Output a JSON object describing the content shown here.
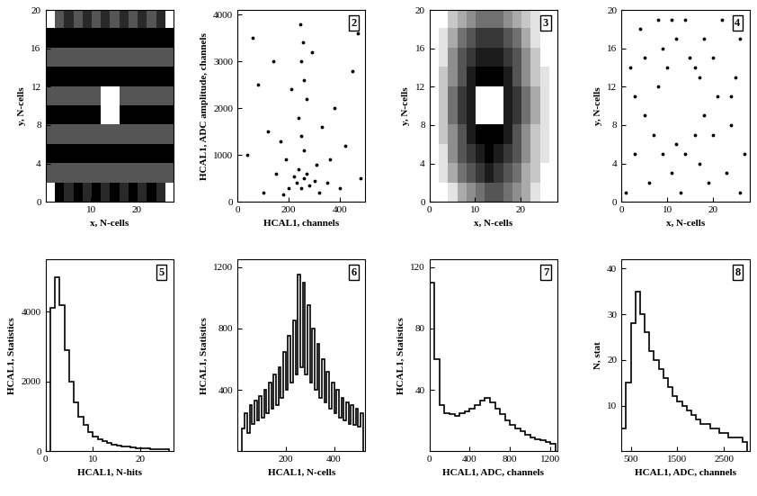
{
  "chart_data": [
    {
      "type": "heatmap",
      "xlabel": "x, N-cells",
      "ylabel": "y, N-cells",
      "xlim": [
        0,
        28
      ],
      "ylim": [
        0,
        20
      ],
      "xticks": [
        10,
        20
      ],
      "yticks": [
        0,
        4,
        8,
        12,
        16,
        20
      ],
      "cells": [
        [
          0,
          0.6,
          0.5,
          0.6,
          0.5,
          0.6,
          0.5,
          0.6,
          0.5,
          0.6,
          0.5,
          0.6,
          0.5,
          0
        ],
        [
          0.4,
          0.4,
          0.4,
          0.4,
          0.4,
          0.4,
          0.4,
          0.4,
          0.4,
          0.4,
          0.4,
          0.4,
          0.4,
          0.4
        ],
        [
          0.6,
          0.6,
          0.6,
          0.6,
          0.6,
          0.6,
          0.6,
          0.6,
          0.6,
          0.6,
          0.6,
          0.6,
          0.6,
          0.6
        ],
        [
          0.4,
          0.4,
          0.4,
          0.4,
          0.4,
          0.4,
          0.4,
          0.4,
          0.4,
          0.4,
          0.4,
          0.4,
          0.4,
          0.4
        ],
        [
          0.6,
          0.6,
          0.6,
          0.6,
          0.6,
          0.6,
          0,
          0,
          0.6,
          0.6,
          0.6,
          0.6,
          0.6,
          0.6
        ],
        [
          0.4,
          0.4,
          0.4,
          0.4,
          0.4,
          0.4,
          0,
          0,
          0.4,
          0.4,
          0.4,
          0.4,
          0.4,
          0.4
        ],
        [
          0.6,
          0.6,
          0.6,
          0.6,
          0.6,
          0.6,
          0.6,
          0.6,
          0.6,
          0.6,
          0.6,
          0.6,
          0.6,
          0.6
        ],
        [
          0.4,
          0.4,
          0.4,
          0.4,
          0.4,
          0.4,
          0.4,
          0.4,
          0.4,
          0.4,
          0.4,
          0.4,
          0.4,
          0.4
        ],
        [
          0.6,
          0.6,
          0.6,
          0.6,
          0.6,
          0.6,
          0.6,
          0.6,
          0.6,
          0.6,
          0.6,
          0.6,
          0.6,
          0.6
        ],
        [
          0,
          0.4,
          0.5,
          0.4,
          0.5,
          0.4,
          0.5,
          0.4,
          0.5,
          0.4,
          0.5,
          0.4,
          0.5,
          0
        ]
      ]
    },
    {
      "type": "scatter",
      "annotations": [
        "2"
      ],
      "color": "#000000",
      "xlabel": "HCAL1, channels",
      "ylabel": "HCAL1, ADC amplitude, channels",
      "xlim": [
        0,
        500
      ],
      "ylim": [
        0,
        4100
      ],
      "xticks": [
        0,
        200,
        400
      ],
      "yticks": [
        0,
        1000,
        2000,
        3000,
        4000
      ],
      "points": [
        [
          250,
          300
        ],
        [
          260,
          500
        ],
        [
          240,
          700
        ],
        [
          230,
          400
        ],
        [
          270,
          600
        ],
        [
          280,
          350
        ],
        [
          220,
          550
        ],
        [
          300,
          450
        ],
        [
          200,
          300
        ],
        [
          310,
          800
        ],
        [
          190,
          900
        ],
        [
          260,
          1100
        ],
        [
          250,
          1400
        ],
        [
          240,
          1800
        ],
        [
          270,
          2200
        ],
        [
          260,
          2600
        ],
        [
          250,
          3000
        ],
        [
          255,
          3400
        ],
        [
          245,
          3800
        ],
        [
          100,
          200
        ],
        [
          150,
          600
        ],
        [
          120,
          1500
        ],
        [
          80,
          2500
        ],
        [
          60,
          3500
        ],
        [
          350,
          400
        ],
        [
          400,
          300
        ],
        [
          420,
          1200
        ],
        [
          380,
          2000
        ],
        [
          450,
          2800
        ],
        [
          470,
          3600
        ],
        [
          330,
          1600
        ],
        [
          170,
          1300
        ],
        [
          210,
          2400
        ],
        [
          290,
          3200
        ],
        [
          320,
          200
        ],
        [
          180,
          150
        ],
        [
          360,
          900
        ],
        [
          140,
          3000
        ],
        [
          40,
          1000
        ],
        [
          480,
          500
        ]
      ]
    },
    {
      "type": "heatmap",
      "annotations": [
        "3"
      ],
      "xlabel": "x, N-cells",
      "ylabel": "y, N-cells",
      "xlim": [
        0,
        28
      ],
      "ylim": [
        0,
        20
      ],
      "xticks": [
        0,
        10,
        20
      ],
      "yticks": [
        0,
        4,
        8,
        12,
        16,
        20
      ],
      "cells": [
        [
          0,
          0,
          0.1,
          0.3,
          0.4,
          0.5,
          0.6,
          0.6,
          0.5,
          0.4,
          0.3,
          0.1,
          0,
          0
        ],
        [
          0,
          0.1,
          0.3,
          0.5,
          0.6,
          0.7,
          0.8,
          0.7,
          0.6,
          0.5,
          0.3,
          0.2,
          0,
          0
        ],
        [
          0,
          0.1,
          0.4,
          0.6,
          0.7,
          0.8,
          0.9,
          0.8,
          0.7,
          0.6,
          0.4,
          0.2,
          0.1,
          0
        ],
        [
          0,
          0.2,
          0.4,
          0.6,
          0.8,
          0.9,
          0.9,
          0.9,
          0.8,
          0.6,
          0.4,
          0.2,
          0.1,
          0
        ],
        [
          0,
          0.2,
          0.5,
          0.7,
          0.8,
          0,
          0,
          0,
          0.8,
          0.7,
          0.5,
          0.3,
          0.1,
          0
        ],
        [
          0,
          0.2,
          0.5,
          0.7,
          0.8,
          0,
          0,
          0,
          0.8,
          0.7,
          0.5,
          0.3,
          0.1,
          0
        ],
        [
          0,
          0.2,
          0.4,
          0.6,
          0.8,
          0.9,
          0.9,
          0.9,
          0.8,
          0.6,
          0.4,
          0.2,
          0.1,
          0
        ],
        [
          0,
          0.1,
          0.4,
          0.6,
          0.7,
          0.8,
          0.8,
          0.8,
          0.7,
          0.6,
          0.4,
          0.2,
          0,
          0
        ],
        [
          0,
          0.1,
          0.3,
          0.5,
          0.6,
          0.7,
          0.7,
          0.7,
          0.6,
          0.5,
          0.3,
          0.1,
          0,
          0
        ],
        [
          0,
          0,
          0.2,
          0.3,
          0.4,
          0.5,
          0.5,
          0.5,
          0.4,
          0.3,
          0.2,
          0.1,
          0,
          0
        ]
      ]
    },
    {
      "type": "scatter",
      "annotations": [
        "4"
      ],
      "color": "#000000",
      "xlabel": "x, N-cells",
      "ylabel": "y, N-cells",
      "xlim": [
        0,
        28
      ],
      "ylim": [
        0,
        20
      ],
      "xticks": [
        0,
        10,
        20
      ],
      "yticks": [
        0,
        4,
        8,
        12,
        16,
        20
      ],
      "points": [
        [
          1,
          1
        ],
        [
          3,
          5
        ],
        [
          5,
          9
        ],
        [
          2,
          14
        ],
        [
          4,
          18
        ],
        [
          6,
          2
        ],
        [
          7,
          7
        ],
        [
          8,
          12
        ],
        [
          9,
          16
        ],
        [
          8,
          19
        ],
        [
          11,
          3
        ],
        [
          12,
          6
        ],
        [
          13,
          1
        ],
        [
          14,
          5
        ],
        [
          15,
          15
        ],
        [
          12,
          17
        ],
        [
          11,
          19
        ],
        [
          17,
          4
        ],
        [
          18,
          9
        ],
        [
          17,
          13
        ],
        [
          18,
          17
        ],
        [
          19,
          2
        ],
        [
          20,
          7
        ],
        [
          21,
          11
        ],
        [
          20,
          15
        ],
        [
          22,
          19
        ],
        [
          23,
          3
        ],
        [
          24,
          8
        ],
        [
          25,
          13
        ],
        [
          26,
          17
        ],
        [
          27,
          5
        ],
        [
          26,
          1
        ],
        [
          10,
          14
        ],
        [
          16,
          14
        ],
        [
          9,
          5
        ],
        [
          3,
          11
        ],
        [
          5,
          15
        ],
        [
          24,
          11
        ],
        [
          14,
          19
        ],
        [
          16,
          7
        ]
      ]
    },
    {
      "type": "histogram",
      "annotations": [
        "5"
      ],
      "color": "#000000",
      "xlabel": "HCAL1, N-hits",
      "ylabel": "HCAL1, Statistics",
      "xlim": [
        0,
        27
      ],
      "ylim": [
        0,
        5500
      ],
      "xticks": [
        0,
        10,
        20
      ],
      "yticks": [
        0,
        2000,
        4000
      ],
      "bins": [
        1,
        2,
        3,
        4,
        5,
        6,
        7,
        8,
        9,
        10,
        11,
        12,
        13,
        14,
        15,
        16,
        17,
        18,
        19,
        20,
        21,
        22,
        23,
        24,
        25,
        26
      ],
      "counts": [
        4100,
        5000,
        4200,
        2900,
        2000,
        1400,
        1000,
        750,
        550,
        430,
        350,
        290,
        240,
        200,
        170,
        150,
        130,
        115,
        100,
        90,
        80,
        70,
        60,
        55,
        50
      ]
    },
    {
      "type": "histogram",
      "annotations": [
        "6"
      ],
      "color": "#000000",
      "xlabel": "HCAL1, N-cells",
      "ylabel": "HCAL1, Statistics",
      "xlim": [
        0,
        530
      ],
      "ylim": [
        0,
        1250
      ],
      "xticks": [
        200,
        400
      ],
      "yticks": [
        400,
        800,
        1200
      ],
      "bins": [
        20,
        30,
        40,
        50,
        60,
        70,
        80,
        90,
        100,
        110,
        120,
        130,
        140,
        150,
        160,
        170,
        180,
        190,
        200,
        210,
        220,
        230,
        240,
        250,
        260,
        270,
        280,
        290,
        300,
        310,
        320,
        330,
        340,
        350,
        360,
        370,
        380,
        390,
        400,
        410,
        420,
        430,
        440,
        450,
        460,
        470,
        480,
        490,
        500,
        510,
        520
      ],
      "counts": [
        150,
        250,
        120,
        300,
        180,
        330,
        200,
        360,
        220,
        400,
        250,
        450,
        280,
        500,
        300,
        550,
        350,
        650,
        400,
        750,
        450,
        850,
        500,
        1150,
        550,
        1100,
        500,
        950,
        450,
        800,
        400,
        700,
        350,
        600,
        320,
        520,
        280,
        450,
        250,
        400,
        220,
        350,
        200,
        320,
        180,
        300,
        170,
        280,
        160,
        250
      ]
    },
    {
      "type": "histogram",
      "annotations": [
        "7"
      ],
      "color": "#000000",
      "xlabel": "HCAL1, ADC, channels",
      "ylabel": "HCAL1, Statistics",
      "xlim": [
        0,
        1270
      ],
      "ylim": [
        0,
        125
      ],
      "xticks": [
        0,
        400,
        800,
        1200
      ],
      "yticks": [
        40,
        80,
        120
      ],
      "bins": [
        0,
        50,
        100,
        150,
        200,
        250,
        300,
        350,
        400,
        450,
        500,
        550,
        600,
        650,
        700,
        750,
        800,
        850,
        900,
        950,
        1000,
        1050,
        1100,
        1150,
        1200,
        1250
      ],
      "counts": [
        110,
        60,
        30,
        25,
        24,
        23,
        25,
        26,
        28,
        30,
        33,
        35,
        32,
        28,
        24,
        20,
        17,
        15,
        13,
        11,
        9,
        8,
        7,
        6,
        5
      ]
    },
    {
      "type": "histogram",
      "annotations": [
        "8"
      ],
      "color": "#000000",
      "xlabel": "HCAL1, ADC, channels",
      "ylabel": "N, stat",
      "xlim": [
        300,
        3050
      ],
      "ylim": [
        0,
        42
      ],
      "xticks": [
        500,
        1500,
        2500
      ],
      "yticks": [
        10,
        20,
        30,
        40
      ],
      "bins": [
        300,
        400,
        500,
        600,
        700,
        800,
        900,
        1000,
        1100,
        1200,
        1300,
        1400,
        1500,
        1600,
        1700,
        1800,
        1900,
        2000,
        2100,
        2200,
        2300,
        2400,
        2500,
        2600,
        2700,
        2800,
        2900,
        3000
      ],
      "counts": [
        5,
        15,
        28,
        35,
        30,
        26,
        22,
        20,
        18,
        16,
        14,
        12,
        11,
        10,
        9,
        8,
        7,
        6,
        6,
        5,
        5,
        4,
        4,
        3,
        3,
        3,
        2
      ]
    }
  ]
}
